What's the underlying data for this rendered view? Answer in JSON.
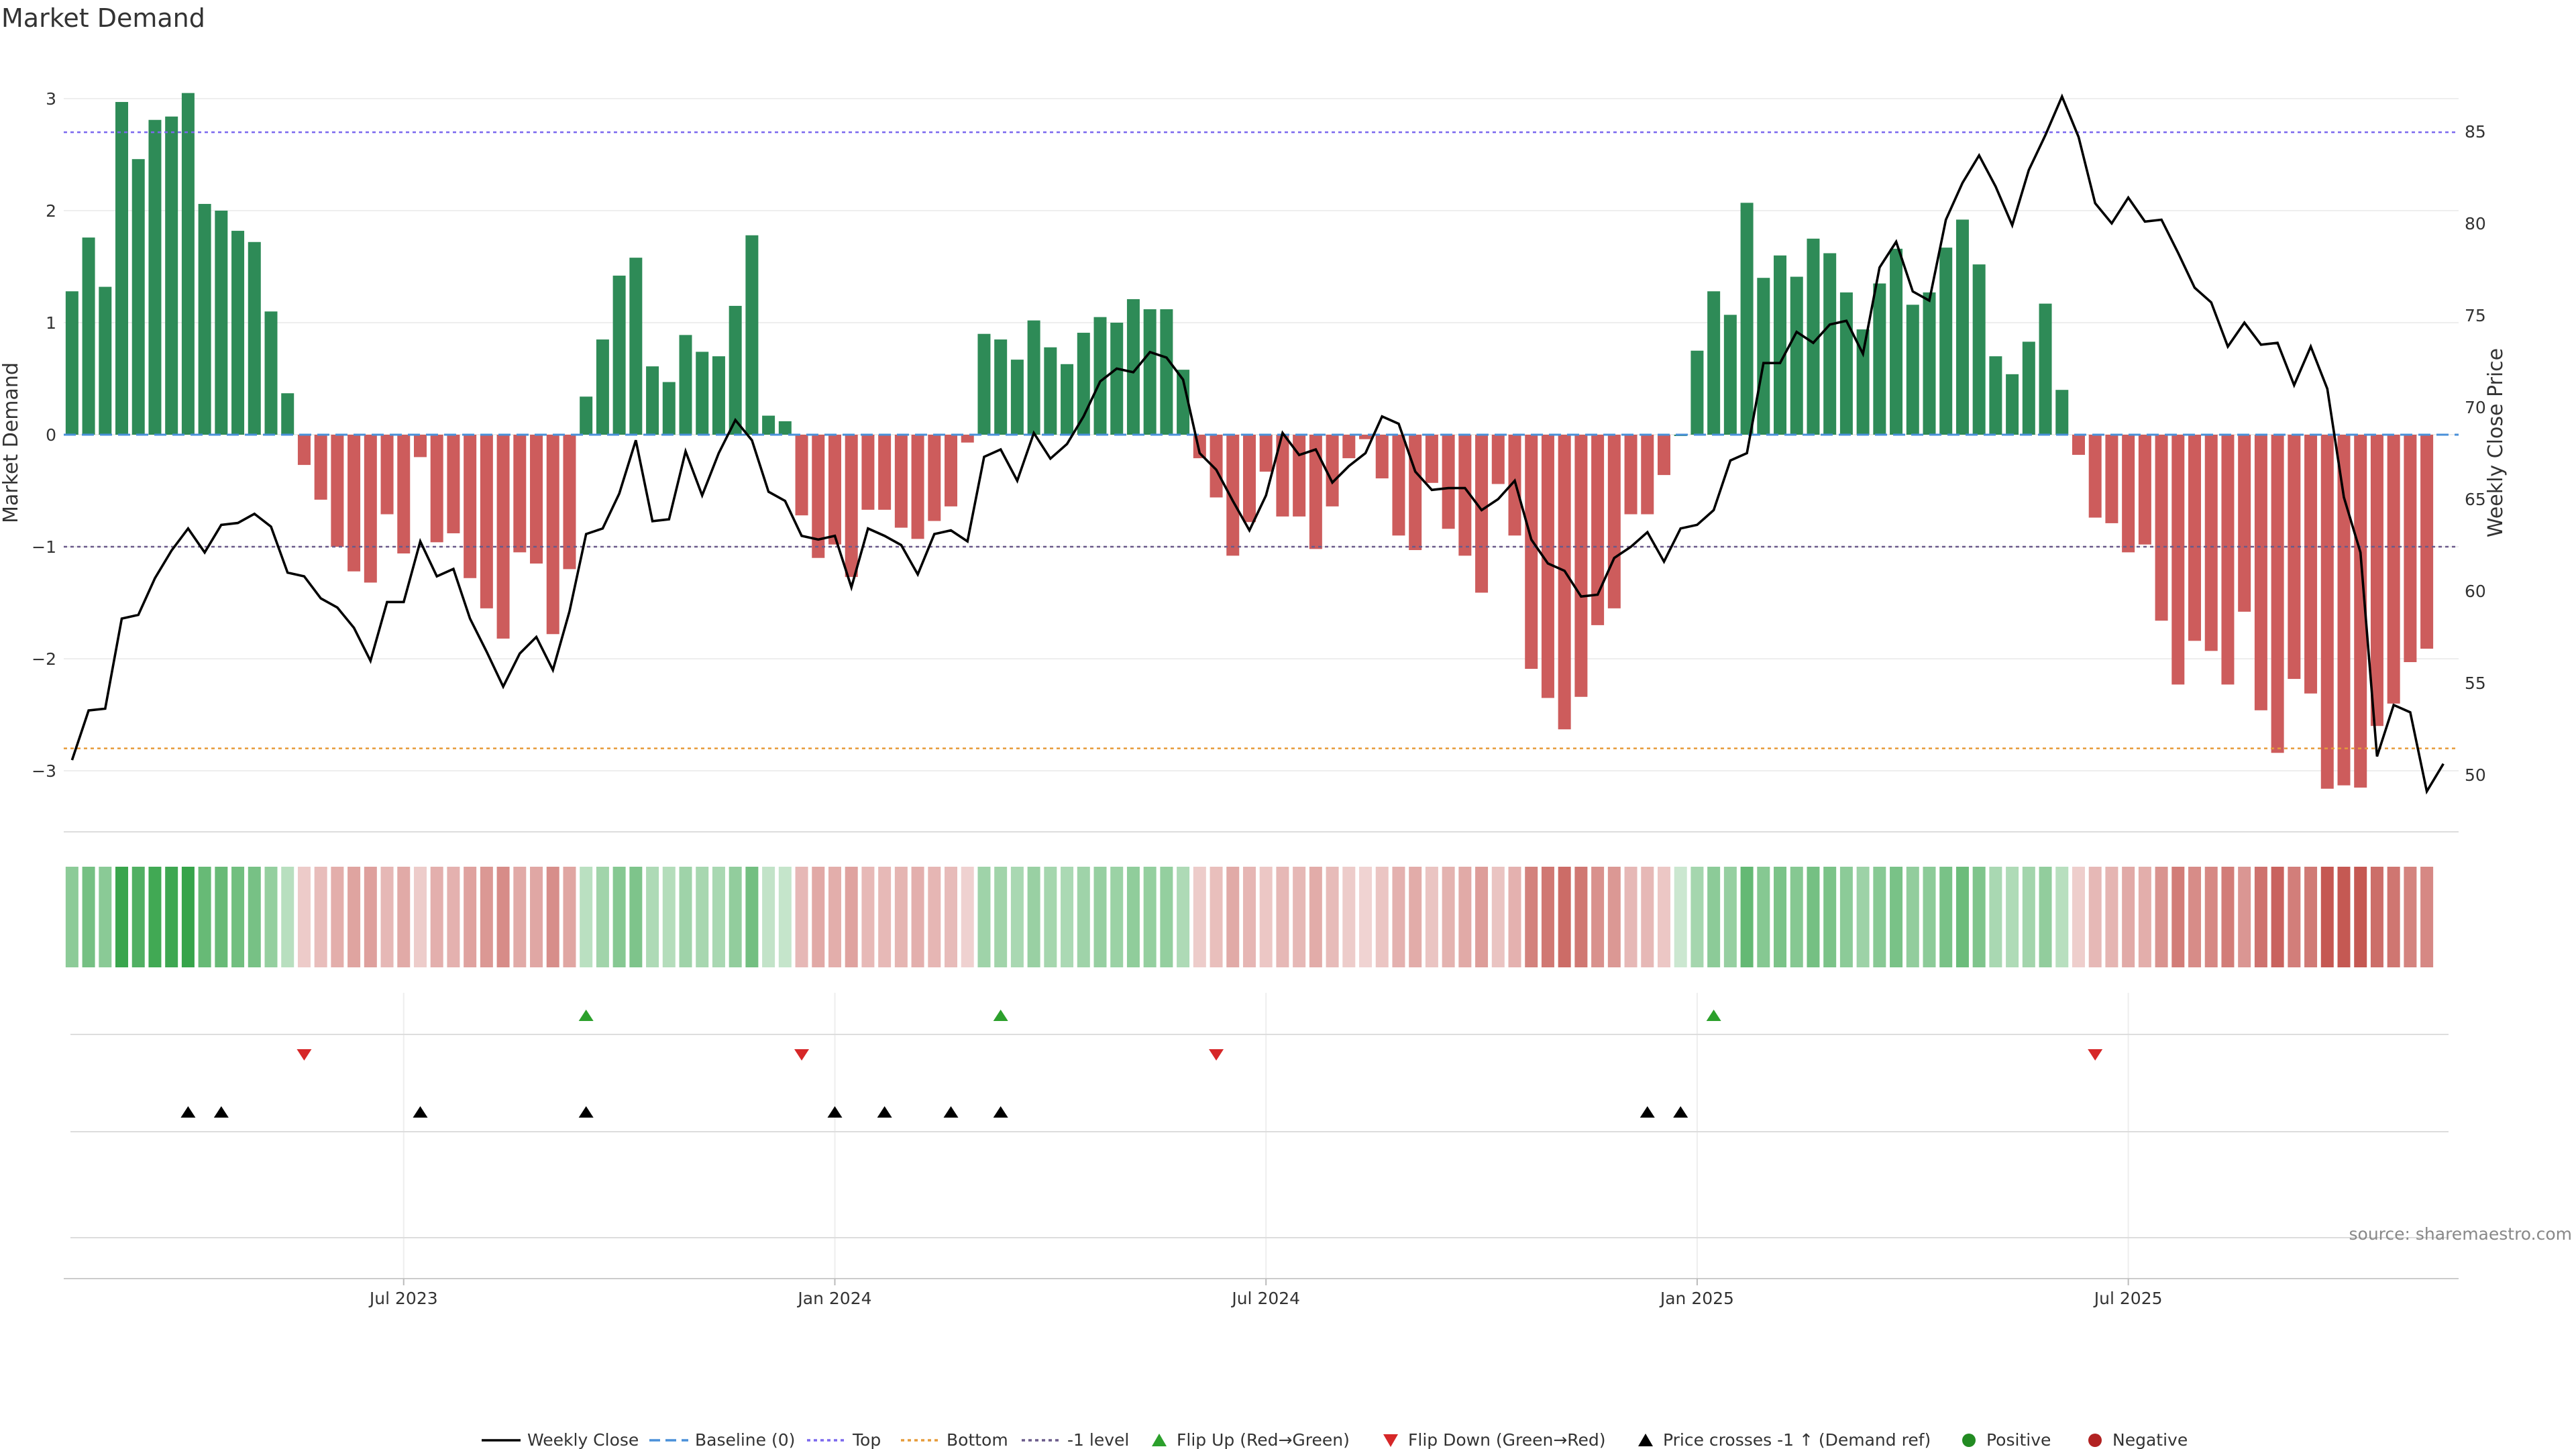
{
  "colors": {
    "positive": "#2e8b57",
    "negative": "#cd5c5c",
    "price": "#000000",
    "baseline": "#4a90d9",
    "top": "#7b68ee",
    "bottom": "#e69b3a",
    "minus_one": "#6a5a8a",
    "flip_up": "#2ca02c",
    "flip_down": "#d62728",
    "cross": "#000000",
    "legend_positive": "#228b22",
    "legend_negative": "#b22222"
  },
  "chart_data": {
    "type": "bar",
    "title": "Market Demand",
    "ylabel": "Market Demand",
    "y2label": "Weekly Close Price",
    "ylim": [
      -3.5,
      3.3
    ],
    "y2lim": [
      48,
      88
    ],
    "yticks": [
      3,
      2,
      1,
      0,
      -1,
      -2,
      -3
    ],
    "ytick_labels": [
      "3",
      "2",
      "1",
      "0",
      "−1",
      "−2",
      "−3"
    ],
    "y2ticks": [
      85,
      80,
      75,
      70,
      65,
      60,
      55,
      50
    ],
    "xtick_labels": [
      "Jul 2023",
      "Jan 2024",
      "Jul 2024",
      "Jan 2025",
      "Jul 2025"
    ],
    "xtick_index": [
      20,
      46,
      72,
      98,
      124
    ],
    "top_level": 2.7,
    "bottom_level": -2.8,
    "minus_one_level": -1,
    "demand": [
      1.28,
      1.76,
      1.32,
      2.97,
      2.46,
      2.81,
      2.84,
      3.05,
      2.06,
      2.0,
      1.82,
      1.72,
      1.1,
      0.37,
      -0.27,
      -0.58,
      -1.0,
      -1.22,
      -1.32,
      -0.71,
      -1.06,
      -0.2,
      -0.96,
      -0.88,
      -1.28,
      -1.55,
      -1.82,
      -1.05,
      -1.15,
      -1.78,
      -1.2,
      0.34,
      0.85,
      1.42,
      1.58,
      0.61,
      0.47,
      0.89,
      0.74,
      0.7,
      1.15,
      1.78,
      0.17,
      0.12,
      -0.72,
      -1.1,
      -0.98,
      -1.27,
      -0.67,
      -0.67,
      -0.83,
      -0.93,
      -0.77,
      -0.64,
      -0.07,
      0.9,
      0.85,
      0.67,
      1.02,
      0.78,
      0.63,
      0.91,
      1.05,
      1.0,
      1.21,
      1.12,
      1.12,
      0.58,
      -0.21,
      -0.56,
      -1.08,
      -0.78,
      -0.33,
      -0.73,
      -0.73,
      -1.02,
      -0.64,
      -0.21,
      -0.04,
      -0.39,
      -0.9,
      -1.03,
      -0.43,
      -0.84,
      -1.08,
      -1.41,
      -0.44,
      -0.9,
      -2.09,
      -2.35,
      -2.63,
      -2.34,
      -1.7,
      -1.55,
      -0.71,
      -0.71,
      -0.36,
      0.0,
      0.75,
      1.28,
      1.07,
      2.07,
      1.4,
      1.6,
      1.41,
      1.75,
      1.62,
      1.27,
      0.94,
      1.35,
      1.66,
      1.16,
      1.27,
      1.67,
      1.92,
      1.52,
      0.7,
      0.54,
      0.83,
      1.17,
      0.4,
      -0.18,
      -0.74,
      -0.79,
      -1.05,
      -0.98,
      -1.66,
      -2.23,
      -1.84,
      -1.93,
      -2.23,
      -1.58,
      -2.46,
      -2.84,
      -2.18,
      -2.31,
      -3.16,
      -3.13,
      -3.15,
      -2.6,
      -2.4,
      -2.03,
      -1.91
    ],
    "price": [
      50.8,
      53.5,
      53.6,
      58.5,
      58.7,
      60.7,
      62.2,
      63.4,
      62.1,
      63.6,
      63.7,
      64.2,
      63.5,
      61.0,
      60.8,
      59.6,
      59.1,
      58.0,
      56.2,
      59.4,
      59.4,
      62.7,
      60.8,
      61.2,
      58.5,
      56.7,
      54.8,
      56.6,
      57.5,
      55.7,
      58.9,
      63.1,
      63.4,
      65.3,
      68.2,
      63.8,
      63.9,
      67.6,
      65.2,
      67.5,
      69.3,
      68.2,
      65.4,
      64.9,
      63.0,
      62.8,
      63.0,
      60.2,
      63.4,
      63.0,
      62.5,
      60.9,
      63.1,
      63.3,
      62.7,
      67.3,
      67.7,
      66.0,
      68.6,
      67.2,
      68.0,
      69.5,
      71.4,
      72.1,
      71.9,
      73.0,
      72.7,
      71.5,
      67.5,
      66.6,
      64.9,
      63.3,
      65.2,
      68.6,
      67.4,
      67.7,
      65.9,
      66.8,
      67.5,
      69.5,
      69.1,
      66.5,
      65.5,
      65.6,
      65.6,
      64.4,
      65.0,
      66.0,
      62.8,
      61.5,
      61.1,
      59.7,
      59.8,
      61.8,
      62.4,
      63.2,
      61.6,
      63.4,
      63.6,
      64.4,
      67.1,
      67.5,
      72.4,
      72.4,
      74.1,
      73.5,
      74.5,
      74.7,
      72.9,
      77.6,
      79.0,
      76.3,
      75.8,
      80.2,
      82.2,
      83.7,
      82.0,
      79.9,
      82.9,
      84.8,
      86.9,
      84.7,
      81.1,
      80.0,
      81.4,
      80.1,
      80.2,
      78.4,
      76.5,
      75.7,
      73.3,
      74.6,
      73.4,
      73.5,
      71.2,
      73.3,
      71.0,
      65.1,
      62.1,
      51.0,
      53.8,
      53.4,
      49.1,
      50.6
    ],
    "flip_up_index": [
      31,
      56,
      99
    ],
    "flip_down_index": [
      14,
      44,
      69,
      122
    ],
    "cross_up_index": [
      7,
      9,
      21,
      31,
      46,
      49,
      53,
      56,
      95,
      97
    ],
    "series": [
      {
        "name": "Weekly Close"
      },
      {
        "name": "Baseline (0)"
      },
      {
        "name": "Top"
      },
      {
        "name": "Bottom"
      },
      {
        "name": "-1 level"
      },
      {
        "name": "Flip Up (Red→Green)"
      },
      {
        "name": "Flip Down (Green→Red)"
      },
      {
        "name": "Price crosses -1 ↑ (Demand ref)"
      },
      {
        "name": "Positive"
      },
      {
        "name": "Negative"
      }
    ],
    "source": "source: sharemaestro.com"
  }
}
